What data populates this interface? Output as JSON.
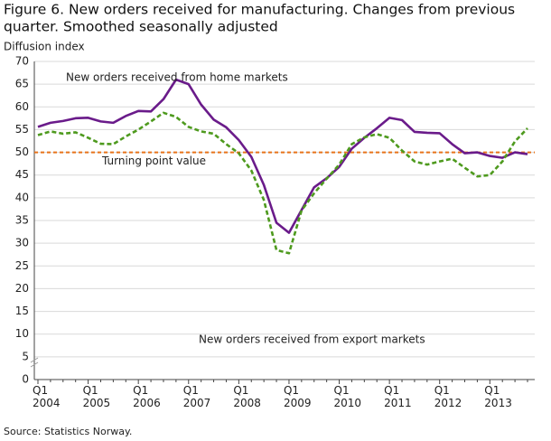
{
  "chart_data": {
    "type": "line",
    "title_lines": [
      "Figure 6. New orders received for manufacturing. Changes from previous",
      "quarter. Smoothed seasonally adjusted"
    ],
    "y_label": "Diffusion index",
    "source": "Source: Statistics Norway.",
    "categories": [
      "Q1 2004",
      null,
      null,
      null,
      "Q1 2005",
      null,
      null,
      null,
      "Q1 2006",
      null,
      null,
      null,
      "Q1 2007",
      null,
      null,
      null,
      "Q1 2008",
      null,
      null,
      null,
      "Q1 2009",
      null,
      null,
      null,
      "Q1 2010",
      null,
      null,
      null,
      "Q1 2011",
      null,
      null,
      null,
      "Q1 2012",
      null,
      null,
      null,
      "Q1 2013",
      null,
      null,
      null
    ],
    "ylim": [
      0,
      70
    ],
    "yticks": [
      0,
      5,
      10,
      15,
      20,
      25,
      30,
      35,
      40,
      45,
      50,
      55,
      60,
      65,
      70
    ],
    "grid": true,
    "series": [
      {
        "name": "New orders received from home markets",
        "color": "#6a1b8a",
        "dashed": false,
        "values": [
          55.6,
          56.5,
          56.9,
          57.5,
          57.6,
          56.8,
          56.5,
          58.0,
          59.1,
          59.0,
          61.7,
          66.0,
          65.0,
          60.5,
          57.2,
          55.5,
          52.7,
          49.0,
          42.8,
          34.5,
          32.3,
          37.3,
          42.3,
          44.3,
          46.8,
          50.8,
          53.2,
          55.3,
          57.6,
          57.1,
          54.5,
          54.3,
          54.2,
          51.8,
          49.8,
          50.0,
          49.2,
          48.8,
          50.0,
          49.6
        ]
      },
      {
        "name": "New orders received from export markets",
        "color": "#4e9a1e",
        "dashed": true,
        "values": [
          53.8,
          54.6,
          54.1,
          54.4,
          53.2,
          51.9,
          51.8,
          53.5,
          55.0,
          56.8,
          58.7,
          57.8,
          55.6,
          54.6,
          54.1,
          51.8,
          49.8,
          46.0,
          39.5,
          28.5,
          27.8,
          37.2,
          41.0,
          44.2,
          47.3,
          51.8,
          53.3,
          54.0,
          53.2,
          50.4,
          48.0,
          47.3,
          48.0,
          48.6,
          46.6,
          44.7,
          45.0,
          48.0,
          52.4,
          55.3
        ]
      }
    ],
    "reference_line": {
      "value": 50,
      "label": "Turning point value",
      "color": "#e8731a"
    }
  }
}
